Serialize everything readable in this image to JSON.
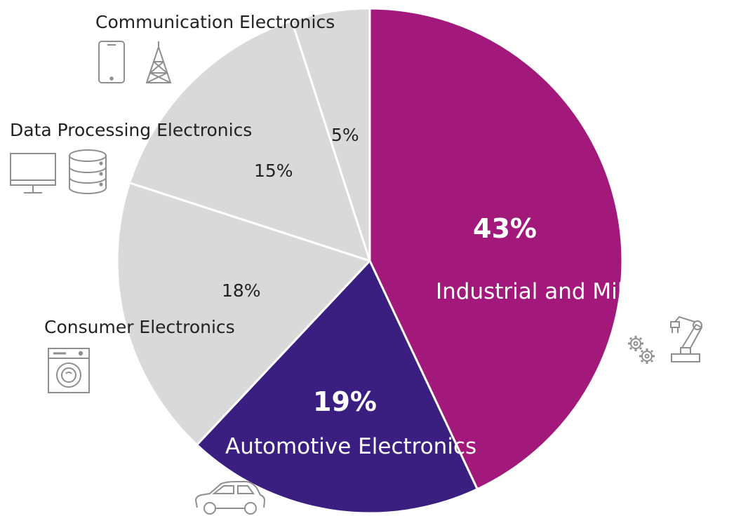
{
  "chart_data": {
    "type": "pie",
    "slices": [
      {
        "label": "Industrial and Mil/Aero",
        "note_mark": "※",
        "value": 43,
        "value_label": "43%"
      },
      {
        "label": "Automotive Electronics",
        "value": 19,
        "value_label": "19%"
      },
      {
        "label": "Consumer Electronics",
        "value": 18,
        "value_label": "18%"
      },
      {
        "label": "Data Processing Electronics",
        "value": 15,
        "value_label": "15%"
      },
      {
        "label": "Communication Electronics",
        "value": 5,
        "value_label": "5%"
      }
    ],
    "start": "12 o'clock",
    "direction": "clockwise",
    "legend": "none"
  },
  "colors": {
    "industrial": "#a3197b",
    "automotive": "#3a1f80",
    "others": "#d9d9d9",
    "separator": "#ffffff",
    "icon_stroke": "#8f8f8f"
  },
  "icons": {
    "communication": [
      "smartphone-icon",
      "cell-tower-icon"
    ],
    "data_processing": [
      "monitor-icon",
      "database-icon"
    ],
    "consumer": [
      "washing-machine-icon"
    ],
    "industrial": [
      "gears-icon",
      "robot-arm-icon"
    ],
    "automotive": [
      "car-icon"
    ]
  }
}
